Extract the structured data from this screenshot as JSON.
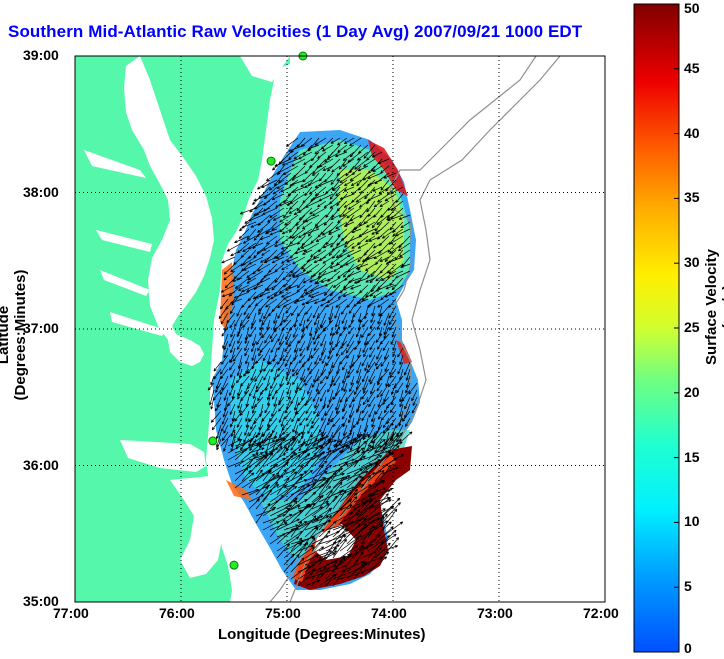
{
  "title": "Southern Mid-Atlantic Raw Velocities (1 Day Avg) 2007/09/21 1000 EDT",
  "xlabel": "Longitude (Degrees:Minutes)",
  "ylabel": "Latitude (Degrees:Minutes)",
  "colorbar": {
    "label": "Surface Velocity (cm/s)",
    "min": 0,
    "max": 50,
    "ticks": [
      "0",
      "5",
      "10",
      "15",
      "20",
      "25",
      "30",
      "35",
      "40",
      "45",
      "50"
    ]
  },
  "x_ticks": [
    "77:00",
    "76:00",
    "75:00",
    "74:00",
    "73:00",
    "72:00"
  ],
  "y_ticks": [
    "39:00",
    "38:00",
    "37:00",
    "36:00",
    "35:00"
  ],
  "colors": {
    "land": "#55f7aa",
    "water": "#ffffff",
    "title": "#0000ff",
    "bathymetry": "#909090",
    "station": "#22ee22"
  },
  "map_data": {
    "lon_range": [
      -77.0,
      -72.0
    ],
    "lat_range": [
      35.0,
      39.0
    ],
    "grid": "dotted",
    "stations": [
      {
        "lon": -74.85,
        "lat": 39.0
      },
      {
        "lon": -75.15,
        "lat": 38.23
      },
      {
        "lon": -75.7,
        "lat": 36.18
      },
      {
        "lon": -75.5,
        "lat": 35.27
      }
    ]
  }
}
